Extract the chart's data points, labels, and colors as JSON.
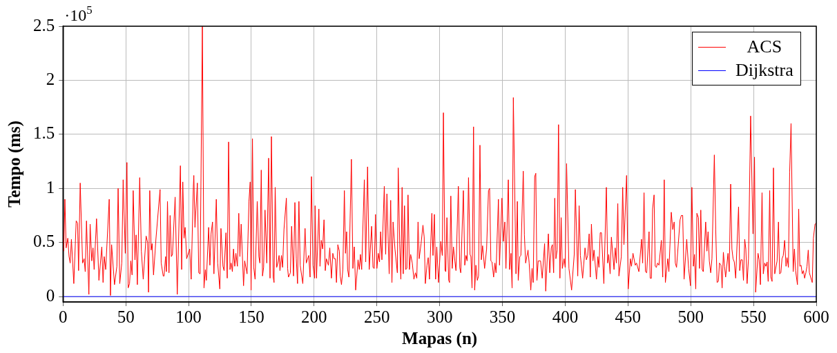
{
  "chart_data": {
    "type": "line",
    "xlabel": "Mapas (n)",
    "ylabel": "Tempo (ms)",
    "annotations": [
      "·10$^{5}$"
    ],
    "xlim": [
      0,
      600
    ],
    "xticks": [
      0,
      50,
      100,
      150,
      200,
      250,
      300,
      350,
      400,
      450,
      500,
      550,
      600
    ],
    "ylim": [
      -0.05,
      2.5
    ],
    "yticks": [
      0,
      0.5,
      1,
      1.5,
      2,
      2.5
    ],
    "grid": true,
    "legend": "top right",
    "marker": "none",
    "line_style": "solid",
    "series": [
      {
        "name": "ACS",
        "color": "#ff0000",
        "x": [
          0.6,
          1.5,
          2.5,
          3.8,
          4.8,
          5.7,
          6.7,
          8.6,
          10.5,
          11.6,
          12.4,
          13.7,
          15.6,
          16.8,
          17.7,
          18.7,
          20.6,
          21.6,
          22.9,
          23.9,
          24.8,
          26.7,
          28.6,
          30.9,
          31.9,
          32.8,
          34,
          36.8,
          37.8,
          38.7,
          41,
          42.9,
          43.9,
          45.2,
          46.8,
          47.9,
          49.6,
          50.9,
          51.9,
          53,
          54,
          55,
          55.9,
          57.3,
          58.2,
          59.2,
          61.1,
          62.4,
          63.9,
          66.2,
          67.4,
          68.1,
          69.1,
          70.2,
          71,
          72.1,
          74,
          77.3,
          78.2,
          79.8,
          80.5,
          81.7,
          82.4,
          83.2,
          84.4,
          85.3,
          86.3,
          87.2,
          89.3,
          91,
          93.5,
          94.5,
          95.4,
          96.4,
          97.3,
          98.5,
          100.9,
          102.1,
          103.8,
          104.2,
          105.1,
          107,
          108.1,
          109.2,
          111,
          112.3,
          113.4,
          114.2,
          116,
          117,
          117.9,
          119.1,
          120.2,
          122.1,
          123.2,
          124.9,
          125.8,
          127.4,
          128.3,
          129.8,
          130.8,
          131.9,
          133,
          133.9,
          134.9,
          135.8,
          136.8,
          137.7,
          138.9,
          140,
          140.9,
          141.9,
          143.8,
          144.7,
          146.6,
          148.1,
          149.1,
          149.8,
          150.9,
          151.9,
          153,
          154.7,
          156,
          156.8,
          157.9,
          158.9,
          159.8,
          160.9,
          162.3,
          163.8,
          164.9,
          166,
          167.4,
          168.1,
          169,
          170.2,
          171.3,
          172.1,
          172.8,
          174,
          174.9,
          176,
          177.9,
          178.9,
          179.6,
          181.1,
          182.1,
          183.6,
          184.7,
          185.8,
          186.8,
          187.9,
          188.9,
          191,
          192.8,
          193.8,
          195.7,
          196.8,
          197.9,
          199.1,
          200.4,
          200.8,
          201.9,
          203.8,
          204.7,
          205.7,
          206.8,
          207.9,
          208.9,
          209.8,
          211.4,
          212.5,
          213.8,
          214.9,
          215.9,
          217,
          217.8,
          218.9,
          220.1,
          220.8,
          221.8,
          222.9,
          224.1,
          225,
          225.9,
          226.7,
          227.7,
          229.7,
          230.9,
          232,
          233.1,
          235,
          236,
          236.9,
          237.9,
          240,
          241.1,
          242.6,
          243.9,
          245.8,
          246.9,
          247.9,
          248.9,
          250,
          251.1,
          252.1,
          253,
          254,
          255.9,
          257,
          258,
          259.8,
          261,
          262,
          262.9,
          264.4,
          266.3,
          267,
          268.2,
          269.1,
          270.1,
          271,
          272,
          272.9,
          273.9,
          274.8,
          275.9,
          276.9,
          278.2,
          279.5,
          280.7,
          281.8,
          282.8,
          283.7,
          285.2,
          286.7,
          287.7,
          288.6,
          289.9,
          290.9,
          291.9,
          293.8,
          294.7,
          295.8,
          296.8,
          297.7,
          299.1,
          300.9,
          302.1,
          303,
          304.3,
          304.9,
          305.8,
          307.2,
          307.9,
          308.9,
          310,
          311,
          312.1,
          313,
          314.9,
          316,
          316.8,
          318.9,
          320,
          321,
          321.9,
          323,
          324.2,
          324.9,
          325.8,
          327,
          327.9,
          328.9,
          330,
          331,
          332.1,
          333.2,
          334.2,
          335.8,
          337.4,
          338.9,
          339.8,
          340.8,
          341.7,
          343,
          344,
          344.9,
          346.8,
          347.7,
          349.6,
          350.8,
          351.9,
          352.8,
          354.7,
          355.7,
          356.8,
          357.7,
          358.7,
          360.8,
          361.9,
          362.6,
          363.8,
          364.7,
          366.6,
          367.5,
          368.5,
          370.4,
          371.3,
          372.6,
          373.6,
          374.5,
          375.7,
          376.6,
          377.5,
          378.5,
          380.4,
          381.7,
          383.6,
          384.5,
          386.6,
          387.7,
          388.9,
          389.8,
          390.8,
          391.7,
          392.6,
          393.6,
          394.7,
          395.8,
          396.8,
          397.7,
          399.1,
          400,
          401.1,
          403,
          405.1,
          407.2,
          408.1,
          410,
          411.1,
          412.1,
          413.9,
          415.8,
          416.9,
          417.9,
          419.1,
          420,
          420.9,
          422.1,
          423,
          424.9,
          426,
          426.9,
          427.9,
          428.9,
          430.8,
          432.8,
          433.8,
          434.7,
          435.8,
          436.8,
          438.9,
          439.8,
          440.8,
          441.9,
          442.8,
          444.7,
          445.8,
          446.8,
          448.9,
          450.2,
          451.9,
          452.8,
          454,
          455.8,
          456.8,
          458.7,
          460.8,
          461.7,
          462.8,
          463.9,
          464.9,
          466.8,
          467.7,
          468.7,
          469.6,
          470.8,
          471.7,
          472.6,
          473.6,
          474.7,
          476.6,
          477.7,
          478.9,
          479.8,
          481.7,
          482.6,
          484.5,
          485.7,
          486.8,
          487.7,
          488.7,
          491.5,
          492.5,
          493.6,
          494.7,
          496.8,
          498.3,
          499.8,
          500.9,
          502.1,
          503,
          504,
          504.9,
          506.1,
          507,
          508,
          509.1,
          510,
          511.9,
          512.9,
          513.8,
          514.8,
          515.9,
          516.9,
          518.8,
          519.9,
          521,
          522,
          522.9,
          524.1,
          525,
          526,
          526.9,
          527.8,
          529.7,
          530.7,
          531.8,
          532.8,
          533.7,
          534.7,
          535.8,
          538.1,
          539,
          540,
          541.1,
          542,
          543,
          543.9,
          544.9,
          546,
          547.7,
          549.6,
          550.8,
          551.7,
          553.6,
          554.5,
          555.5,
          556.8,
          557.8,
          558.9,
          559.8,
          560.8,
          561.7,
          562.9,
          563.8,
          564.8,
          565.9,
          566.9,
          568.8,
          569.9,
          570.8,
          571.8,
          572.7,
          573.7,
          574.8,
          575.9,
          576.7,
          577.8,
          578.8,
          579.9,
          581.6,
          582.6,
          583.5,
          585,
          586,
          586.9,
          587.9,
          588.8,
          589.8,
          590.7,
          591.7,
          592.6,
          593.6,
          594.5,
          595.5,
          596.8,
          597.7,
          599,
          600
        ],
        "values": [
          0.42,
          0.9,
          0.45,
          0.54,
          0.37,
          0.31,
          0.53,
          0.12,
          0.7,
          0.68,
          0.24,
          1.05,
          0.31,
          0.35,
          0.23,
          0.7,
          0.02,
          0.67,
          0.33,
          0.45,
          0.25,
          0.72,
          0.15,
          0.46,
          0.13,
          0.37,
          0.25,
          0.9,
          0.01,
          0.48,
          0.11,
          0.28,
          1.0,
          0.12,
          0.31,
          1.08,
          0.4,
          1.24,
          0.08,
          0.12,
          0.33,
          0.2,
          0.98,
          0.34,
          0.57,
          0.11,
          1.1,
          0.42,
          0.16,
          0.56,
          0.5,
          0.04,
          0.98,
          0.43,
          0.49,
          0.2,
          0.53,
          0.99,
          0.31,
          0.19,
          0.19,
          0.37,
          0.23,
          0.88,
          0.22,
          0.75,
          0.37,
          0.39,
          0.92,
          0.02,
          1.21,
          0.25,
          1.06,
          0.54,
          0.64,
          0.35,
          0.44,
          0.16,
          1.01,
          1.12,
          0.64,
          1.05,
          0.22,
          0.21,
          2.5,
          0.08,
          0.25,
          0.15,
          0.64,
          0.29,
          0.58,
          0.69,
          0.21,
          0.9,
          0.31,
          0.07,
          0.63,
          0.28,
          0.24,
          0.59,
          0.17,
          1.43,
          0.25,
          0.31,
          0.23,
          0.44,
          0.28,
          0.4,
          0.28,
          0.77,
          0.37,
          0.67,
          0.1,
          0.33,
          0.21,
          0.88,
          1.06,
          0.06,
          1.46,
          0.27,
          0.16,
          0.88,
          0.37,
          0.31,
          1.17,
          0.19,
          0.27,
          0.8,
          0.31,
          1.28,
          0.17,
          1.48,
          0.18,
          0.13,
          1.01,
          0.27,
          0.32,
          0.38,
          0.24,
          0.38,
          0.27,
          0.62,
          0.91,
          0.26,
          0.18,
          0.22,
          0.65,
          0.19,
          0.87,
          0.35,
          0.12,
          0.88,
          0.29,
          0.12,
          0.63,
          0.31,
          0.38,
          0.18,
          1.11,
          0.29,
          0.17,
          0.84,
          0.17,
          0.81,
          0.28,
          0.52,
          0.44,
          0.71,
          0.24,
          0.35,
          0.29,
          0.45,
          0.17,
          0.4,
          0.35,
          0.35,
          0.13,
          0.48,
          0.42,
          0.19,
          0.11,
          0.25,
          0.98,
          0.4,
          0.6,
          0.25,
          0.18,
          1.27,
          0.26,
          0.46,
          0.06,
          0.34,
          0.25,
          0.39,
          0.25,
          1.08,
          0.32,
          1.2,
          0.25,
          0.65,
          0.27,
          0.26,
          0.76,
          0.26,
          0.4,
          0.32,
          0.6,
          0.34,
          1.02,
          0.39,
          0.95,
          0.21,
          0.89,
          0.13,
          0.69,
          0.44,
          0.22,
          1.19,
          0.48,
          0.16,
          1.01,
          0.21,
          0.84,
          0.25,
          0.26,
          0.94,
          0.25,
          0.39,
          0.31,
          0.16,
          0.22,
          0.17,
          0.69,
          0.35,
          0.49,
          0.66,
          0.55,
          0.12,
          0.29,
          0.36,
          0.16,
          0.77,
          0.38,
          0.76,
          0.16,
          0.46,
          0.13,
          0.51,
          0.38,
          1.7,
          0.24,
          0.23,
          0.73,
          0.15,
          0.13,
          0.93,
          0.26,
          0.46,
          0.33,
          0.24,
          1.02,
          0.27,
          0.22,
          0.98,
          0.29,
          0.38,
          0.33,
          1.1,
          0.39,
          0.37,
          0.08,
          1.57,
          0.06,
          0.29,
          0.15,
          0.19,
          1.4,
          0.34,
          0.47,
          0.26,
          0.44,
          0.98,
          1.0,
          0.33,
          0.32,
          0.18,
          0.31,
          0.22,
          0.9,
          0.29,
          0.91,
          0.51,
          0.69,
          0.26,
          1.08,
          0.25,
          0.4,
          0.08,
          1.84,
          0.21,
          0.88,
          0.15,
          0.37,
          0.38,
          1.16,
          0.57,
          0.31,
          0.43,
          0.31,
          0.06,
          0.26,
          0.13,
          1.11,
          1.14,
          0.15,
          0.33,
          0.33,
          0.17,
          0.49,
          0.05,
          0.58,
          0.22,
          0.45,
          0.48,
          0.22,
          0.91,
          0.35,
          0.43,
          1.59,
          0.17,
          0.73,
          0.26,
          0.35,
          0.27,
          1.23,
          0.26,
          0.06,
          0.39,
          0.99,
          0.19,
          0.84,
          0.38,
          0.17,
          0.45,
          0.34,
          0.38,
          0.58,
          0.18,
          0.67,
          0.33,
          0.43,
          0.16,
          0.37,
          0.27,
          0.59,
          0.59,
          0.12,
          1.01,
          0.31,
          0.39,
          0.21,
          0.55,
          0.25,
          0.45,
          0.31,
          0.86,
          0.19,
          0.37,
          1.01,
          0.48,
          1.12,
          0.07,
          0.35,
          0.28,
          0.4,
          0.29,
          0.31,
          0.23,
          0.53,
          0.31,
          0.96,
          0.23,
          0.22,
          0.6,
          0.17,
          0.17,
          0.81,
          0.94,
          0.28,
          0.27,
          0.31,
          0.29,
          0.52,
          0.18,
          1.08,
          0.13,
          0.35,
          0.23,
          0.78,
          0.62,
          0.69,
          0.31,
          0.27,
          0.71,
          0.75,
          0.75,
          0.16,
          0.53,
          0.26,
          0.1,
          1.01,
          0.28,
          0.39,
          0.07,
          0.77,
          0.73,
          0.26,
          0.8,
          0.25,
          0.23,
          0.69,
          0.42,
          0.6,
          0.33,
          0.22,
          0.35,
          1.31,
          0.62,
          0.13,
          0.14,
          0.31,
          0.29,
          0.08,
          0.41,
          0.28,
          0.18,
          0.4,
          0.23,
          1.04,
          0.44,
          0.35,
          0.32,
          0.17,
          0.83,
          0.24,
          0.34,
          0.34,
          0.15,
          0.53,
          0.44,
          0.12,
          0.35,
          1.67,
          0.58,
          1.29,
          0.04,
          0.4,
          0.34,
          0.11,
          0.96,
          0.21,
          0.31,
          0.28,
          0.32,
          0.14,
          0.98,
          0.18,
          0.14,
          1.19,
          0.21,
          0.33,
          0.69,
          0.21,
          0.22,
          0.35,
          0.38,
          0.52,
          0.28,
          0.36,
          0.27,
          1.15,
          1.6,
          0.23,
          0.44,
          0.24,
          0.11,
          0.81,
          0.28,
          0.29,
          0.21,
          0.24,
          0.17,
          0.22,
          0.28,
          0.43,
          0.22,
          0.18,
          0.13,
          0.54,
          0.67,
          0.68
        ]
      },
      {
        "name": "Dijkstra",
        "color": "#0000ff",
        "x": [
          0,
          600
        ],
        "values": [
          0,
          0
        ]
      }
    ]
  }
}
